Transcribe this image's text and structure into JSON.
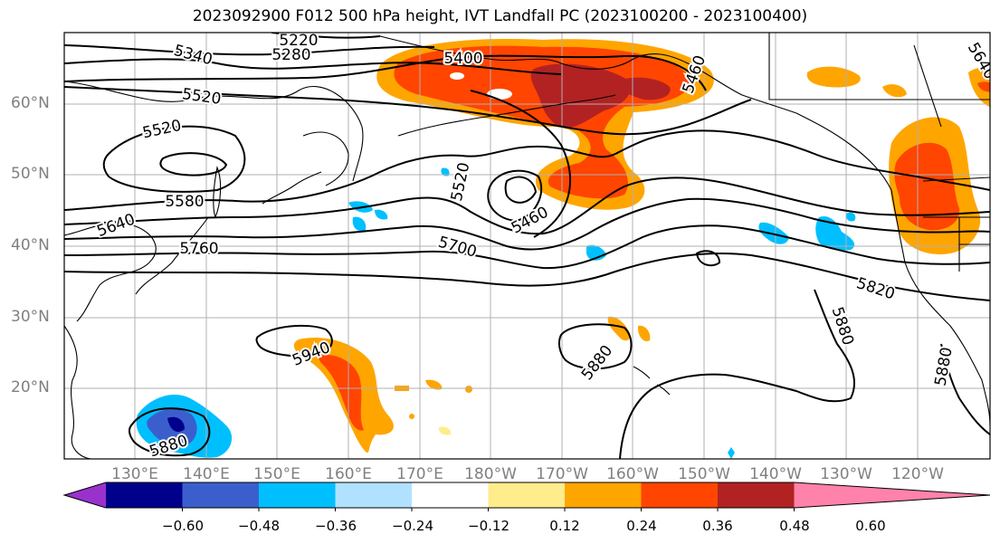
{
  "title": "2023092900 F012 500 hPa height, IVT Landfall PC (2023100200 - 2023100400)",
  "lat_labels": [
    "60°N",
    "50°N",
    "40°N",
    "30°N",
    "20°N"
  ],
  "lon_labels": [
    "130°E",
    "140°E",
    "150°E",
    "160°E",
    "170°E",
    "180°W",
    "170°W",
    "160°W",
    "150°W",
    "140°W",
    "130°W",
    "120°W"
  ],
  "contour_labels": [
    "5220",
    "5340",
    "5280",
    "5400",
    "5520",
    "5520",
    "5520",
    "5580",
    "5640",
    "5760",
    "5700",
    "5460",
    "5460",
    "5820",
    "5880",
    "5880",
    "5880",
    "5880",
    "5940",
    "5640"
  ],
  "colorbar": {
    "ticks": [
      "−0.60",
      "−0.48",
      "−0.36",
      "−0.24",
      "−0.12",
      "0.12",
      "0.24",
      "0.36",
      "0.48",
      "0.60"
    ],
    "colors": [
      "#9932cc",
      "#00008b",
      "#3a5fcd",
      "#00bfff",
      "#b0e2ff",
      "#ffffff",
      "#ffec8b",
      "#ffa500",
      "#ff4500",
      "#b22222",
      "#ff82ab"
    ]
  },
  "palette": {
    "grid": "#b0b0b0",
    "coast": "#000000",
    "contour": "#000000",
    "tick_label": "#808080"
  }
}
